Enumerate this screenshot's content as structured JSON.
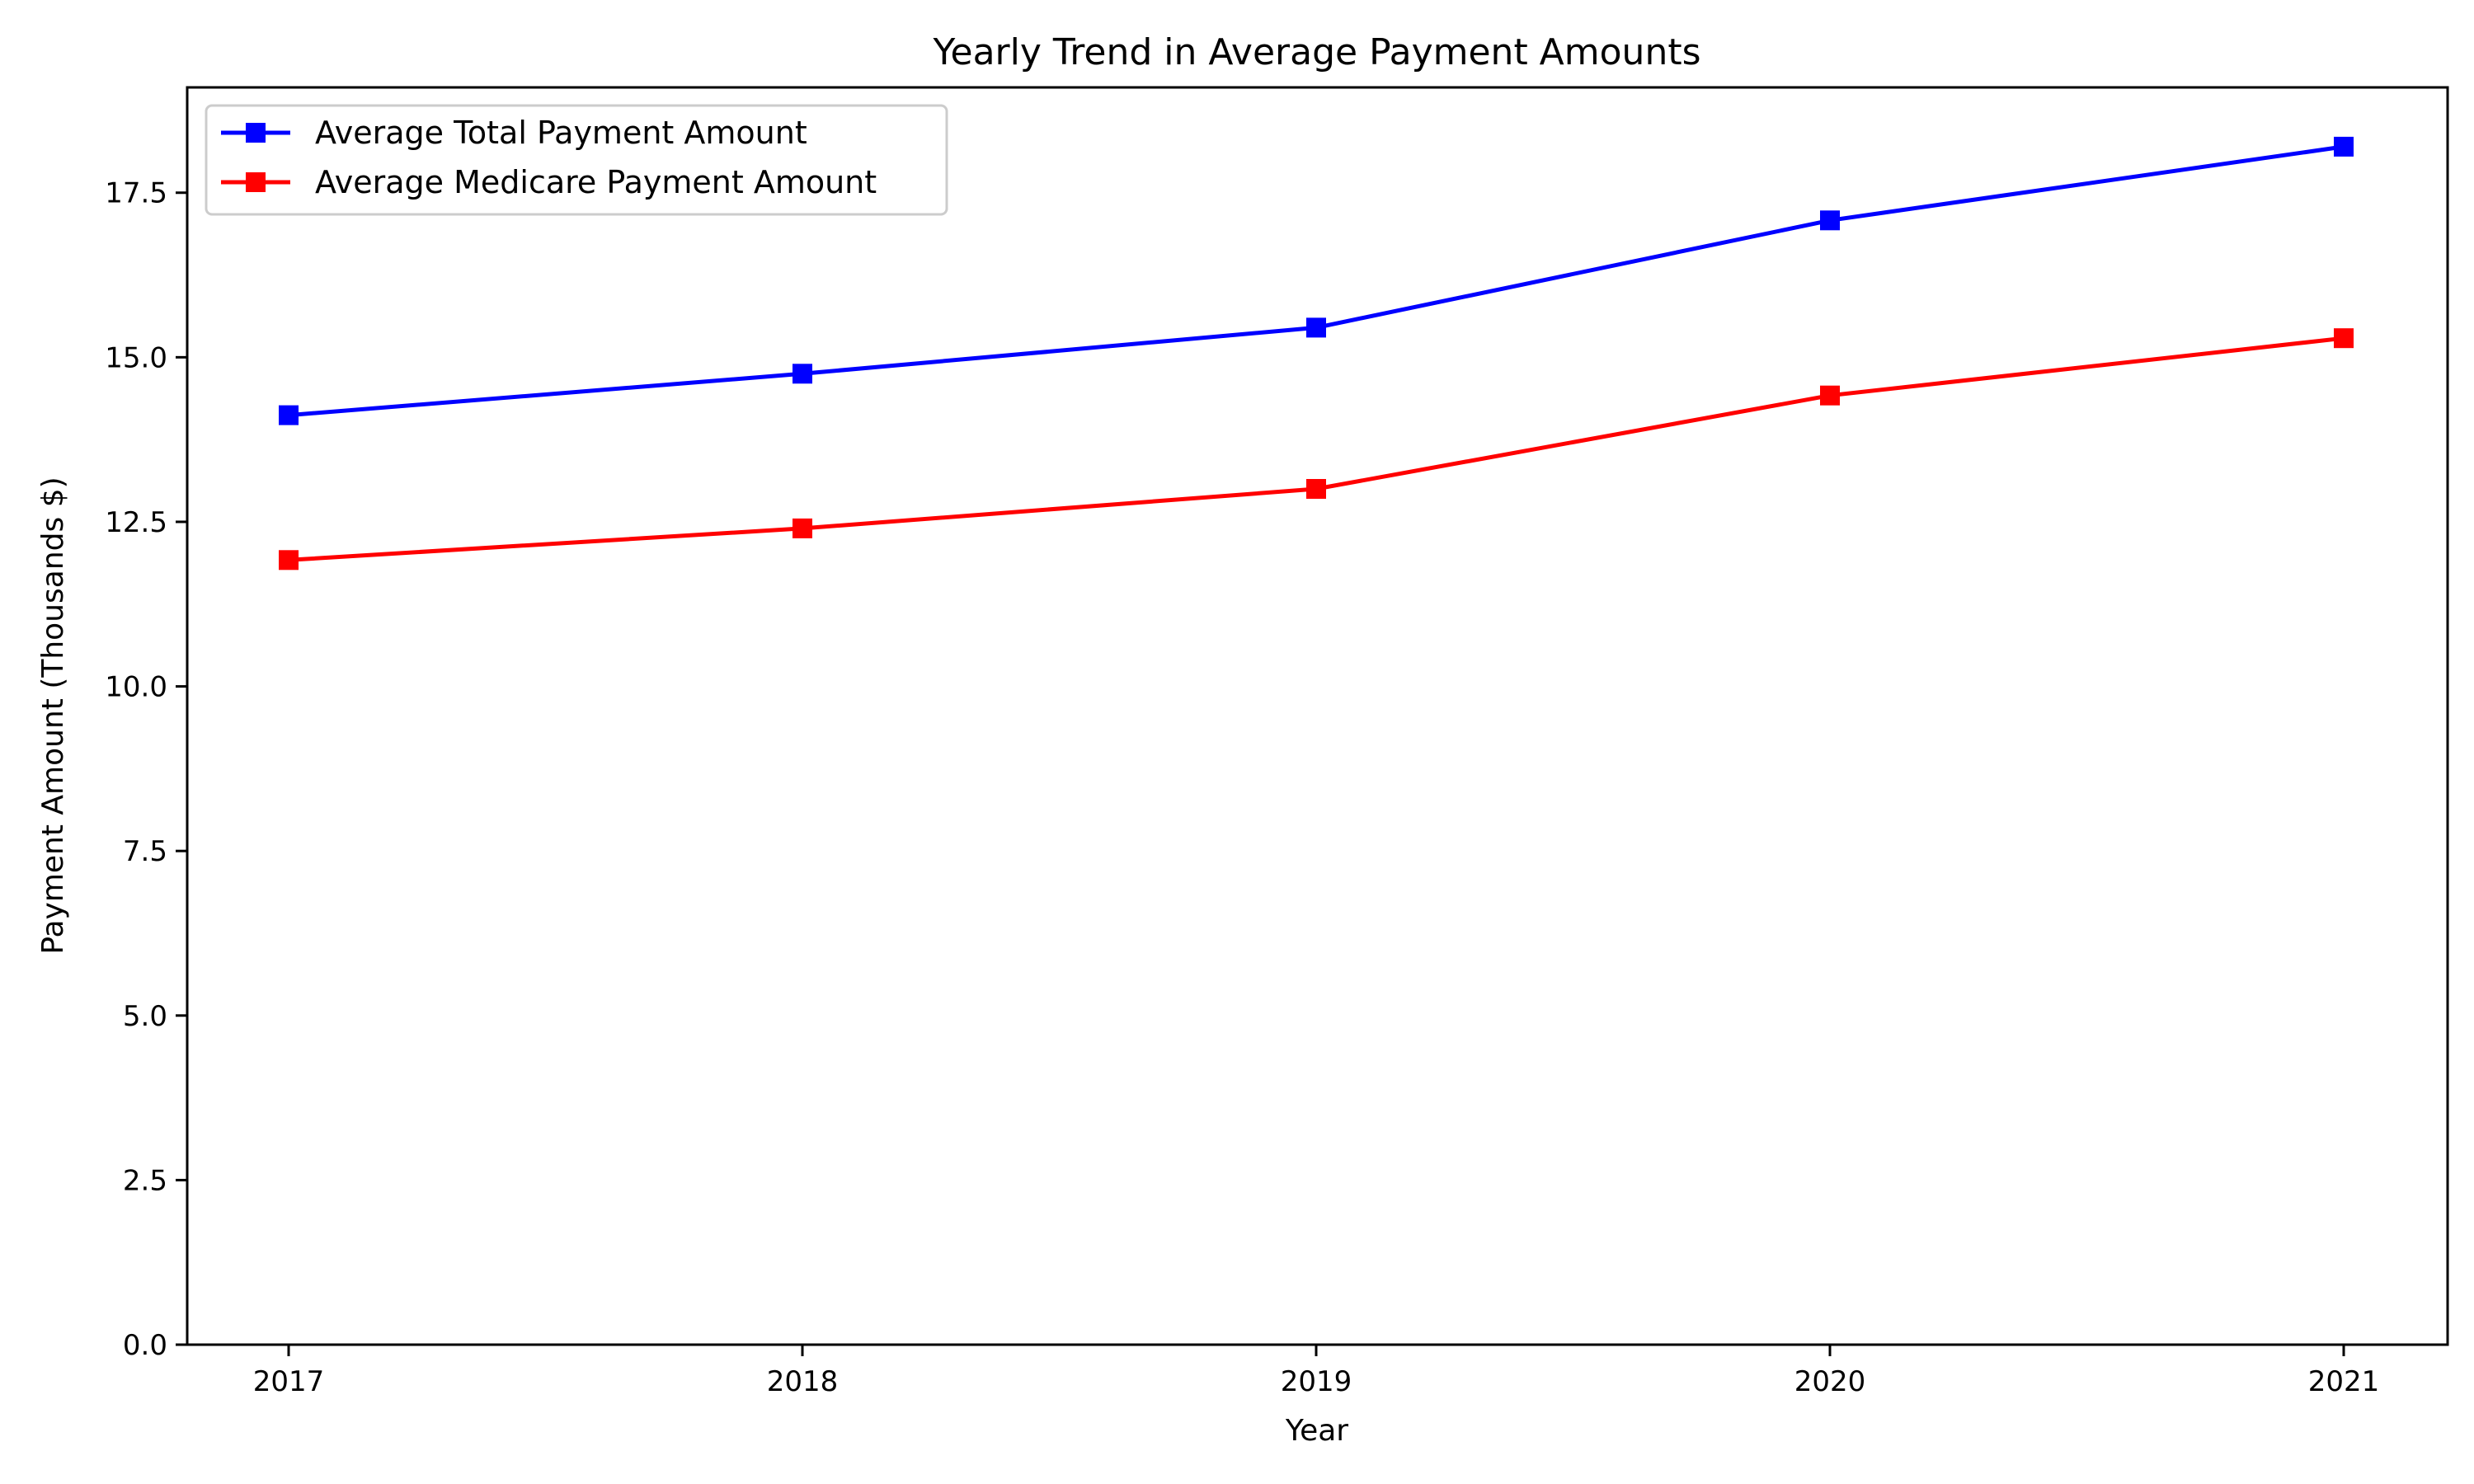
{
  "chart_data": {
    "type": "line",
    "title": "Yearly Trend in Average Payment Amounts",
    "xlabel": "Year",
    "ylabel": "Payment Amount (Thousands $)",
    "categories": [
      "2017",
      "2018",
      "2019",
      "2020",
      "2021"
    ],
    "series": [
      {
        "name": "Average Total Payment Amount",
        "color": "#0000ff",
        "marker": "square",
        "values": [
          14.12,
          14.75,
          15.45,
          17.08,
          18.2
        ]
      },
      {
        "name": "Average Medicare Payment Amount",
        "color": "#ff0000",
        "marker": "square",
        "values": [
          11.92,
          12.4,
          13.0,
          14.42,
          15.29
        ]
      }
    ],
    "ylim": [
      0,
      19.1
    ],
    "yticks": [
      0,
      2.5,
      5,
      7.5,
      10,
      12.5,
      15,
      17.5
    ],
    "ytick_labels": [
      "0.0",
      "2.5",
      "5.0",
      "7.5",
      "10.0",
      "12.5",
      "15.0",
      "17.5"
    ],
    "grid": false,
    "legend_position": "top-left"
  }
}
